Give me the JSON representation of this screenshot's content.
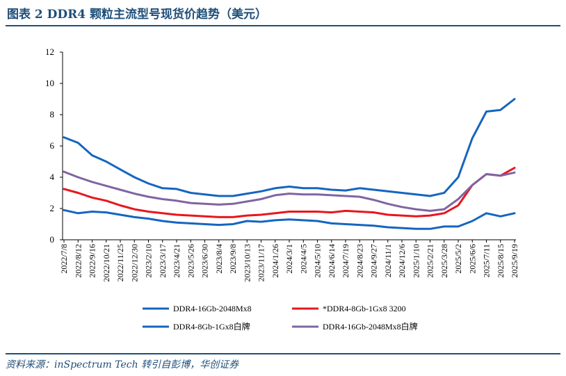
{
  "header": {
    "title": "图表 2   DDR4 颗粒主流型号现货价趋势（美元）"
  },
  "footer": {
    "source": "资料来源：inSpectrum Tech 转引自彭博，华创证券"
  },
  "chart_data": {
    "type": "line",
    "title": "",
    "xlabel": "",
    "ylabel": "",
    "ylim": [
      0,
      12
    ],
    "yticks": [
      0,
      2,
      4,
      6,
      8,
      10,
      12
    ],
    "grid": false,
    "legend_position": "bottom",
    "x": [
      "2022/7/8",
      "2022/8/12",
      "2022/9/16",
      "2022/10/21",
      "2022/11/25",
      "2022/12/30",
      "2023/2/10",
      "2023/3/17",
      "2023/4/21",
      "2023/5/26",
      "2023/6/30",
      "2023/8/4",
      "2023/9/8",
      "2023/10/13",
      "2023/11/17",
      "2024/1/26",
      "2024/3/1",
      "2024/4/5",
      "2024/5/10",
      "2024/6/14",
      "2024/7/19",
      "2024/8/23",
      "2024/9/27",
      "2024/11/1",
      "2024/12/6",
      "2025/1/10",
      "2025/2/21",
      "2025/3/28",
      "2025/5/2",
      "2025/6/6",
      "2025/7/11",
      "2025/8/15",
      "2025/9/19"
    ],
    "series": [
      {
        "name": "DDR4-16Gb-2048Mx8",
        "color": "#1565c0",
        "values": [
          6.55,
          6.2,
          5.4,
          5.0,
          4.5,
          4.0,
          3.6,
          3.3,
          3.25,
          3.0,
          2.9,
          2.8,
          2.8,
          2.95,
          3.1,
          3.3,
          3.4,
          3.3,
          3.3,
          3.2,
          3.15,
          3.3,
          3.2,
          3.1,
          3.0,
          2.9,
          2.8,
          3.0,
          4.0,
          6.5,
          8.2,
          8.3,
          9.0
        ]
      },
      {
        "name": "*DDR4-8Gb-1Gx8 3200",
        "color": "#e8161b",
        "values": [
          3.25,
          3.0,
          2.7,
          2.5,
          2.2,
          1.95,
          1.8,
          1.7,
          1.6,
          1.55,
          1.5,
          1.45,
          1.45,
          1.55,
          1.6,
          1.7,
          1.8,
          1.8,
          1.8,
          1.75,
          1.85,
          1.8,
          1.75,
          1.6,
          1.55,
          1.5,
          1.55,
          1.7,
          2.2,
          3.5,
          4.2,
          4.1,
          4.6
        ]
      },
      {
        "name": "DDR4-8Gb-1Gx8白牌",
        "color": "#1565c0",
        "values": [
          1.9,
          1.7,
          1.8,
          1.75,
          1.6,
          1.45,
          1.35,
          1.2,
          1.1,
          1.05,
          1.0,
          0.95,
          1.0,
          1.2,
          1.15,
          1.25,
          1.3,
          1.25,
          1.2,
          1.05,
          1.0,
          0.95,
          0.9,
          0.8,
          0.75,
          0.7,
          0.7,
          0.85,
          0.85,
          1.2,
          1.7,
          1.5,
          1.7
        ]
      },
      {
        "name": "DDR4-16Gb-2048Mx8白牌",
        "color": "#8064a2",
        "values": [
          4.35,
          4.0,
          3.7,
          3.45,
          3.2,
          2.95,
          2.75,
          2.6,
          2.5,
          2.35,
          2.3,
          2.25,
          2.3,
          2.45,
          2.6,
          2.85,
          2.95,
          2.9,
          2.9,
          2.85,
          2.8,
          2.75,
          2.55,
          2.3,
          2.1,
          1.95,
          1.85,
          1.95,
          2.6,
          3.5,
          4.2,
          4.1,
          4.3
        ]
      }
    ]
  }
}
